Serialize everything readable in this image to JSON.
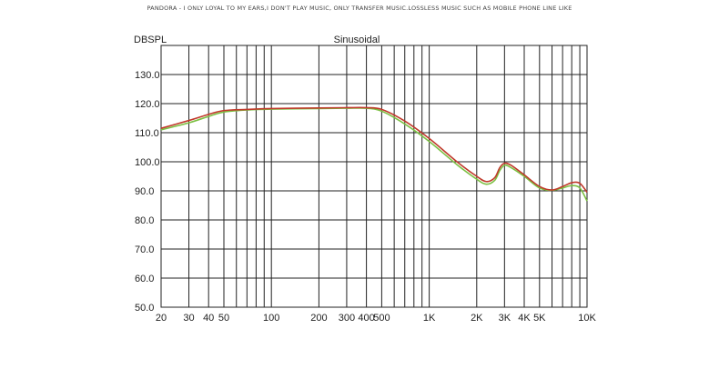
{
  "header": {
    "caption": "PANDORA - I ONLY LOYAL TO MY EARS,I DON'T PLAY MUSIC, ONLY TRANSFER MUSIC.LOSSLESS MUSIC SUCH AS MOBILE PHONE LINE LIKE"
  },
  "chart_data": {
    "type": "line",
    "title": "Sinusoidal",
    "ylabel": "DBSPL",
    "xlabel": "",
    "xscale": "log",
    "xlim": [
      20,
      10000
    ],
    "ylim": [
      50,
      140
    ],
    "grid": true,
    "y_ticks": [
      {
        "value": 50,
        "label": "50.0"
      },
      {
        "value": 60,
        "label": "60.0"
      },
      {
        "value": 70,
        "label": "70.0"
      },
      {
        "value": 80,
        "label": "80.0"
      },
      {
        "value": 90,
        "label": "90.0"
      },
      {
        "value": 100,
        "label": "100.0"
      },
      {
        "value": 110,
        "label": "110.0"
      },
      {
        "value": 120,
        "label": "120.0"
      },
      {
        "value": 130,
        "label": "130.0"
      }
    ],
    "x_ticks": [
      {
        "value": 20,
        "label": "20"
      },
      {
        "value": 30,
        "label": "30"
      },
      {
        "value": 40,
        "label": "40"
      },
      {
        "value": 50,
        "label": "50"
      },
      {
        "value": 100,
        "label": "100"
      },
      {
        "value": 200,
        "label": "200"
      },
      {
        "value": 300,
        "label": "300"
      },
      {
        "value": 400,
        "label": "400"
      },
      {
        "value": 500,
        "label": "500"
      },
      {
        "value": 1000,
        "label": "1K"
      },
      {
        "value": 2000,
        "label": "2K"
      },
      {
        "value": 3000,
        "label": "3K"
      },
      {
        "value": 4000,
        "label": "4K"
      },
      {
        "value": 5000,
        "label": "5K"
      },
      {
        "value": 10000,
        "label": "10K"
      }
    ],
    "x_grid": [
      20,
      30,
      40,
      50,
      60,
      70,
      80,
      90,
      100,
      200,
      300,
      400,
      500,
      600,
      700,
      800,
      900,
      1000,
      2000,
      3000,
      4000,
      5000,
      6000,
      7000,
      8000,
      9000,
      10000
    ],
    "series": [
      {
        "color": "#c0392b",
        "x": [
          20,
          30,
          40,
          50,
          70,
          100,
          200,
          300,
          400,
          500,
          700,
          1000,
          1500,
          2000,
          2300,
          2600,
          2800,
          3000,
          3300,
          4000,
          5000,
          6000,
          7000,
          8000,
          9000,
          10000
        ],
        "y": [
          111.5,
          114.2,
          116.3,
          117.6,
          118.0,
          118.3,
          118.5,
          118.6,
          118.6,
          118.0,
          114.0,
          108.0,
          100.0,
          95.0,
          93.2,
          94.5,
          98.0,
          99.5,
          98.8,
          95.5,
          91.5,
          90.3,
          91.5,
          92.8,
          92.6,
          89.5
        ]
      },
      {
        "color": "#7cc043",
        "x": [
          20,
          30,
          40,
          50,
          70,
          100,
          200,
          300,
          400,
          500,
          700,
          1000,
          1500,
          2000,
          2300,
          2600,
          2800,
          3000,
          3300,
          4000,
          5000,
          6000,
          7000,
          8000,
          9000,
          10000
        ],
        "y": [
          111.0,
          113.4,
          115.6,
          117.1,
          117.8,
          118.1,
          118.3,
          118.4,
          118.4,
          117.4,
          113.0,
          107.0,
          99.0,
          94.0,
          92.3,
          93.6,
          97.0,
          98.8,
          98.0,
          95.0,
          91.0,
          90.2,
          91.0,
          91.8,
          91.0,
          86.5
        ]
      }
    ]
  }
}
